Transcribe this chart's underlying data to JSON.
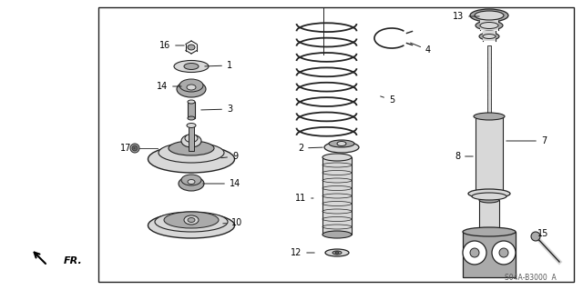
{
  "bg_color": "#ffffff",
  "border_color": "#000000",
  "line_color": "#222222",
  "fig_width": 6.4,
  "fig_height": 3.19,
  "dpi": 100,
  "watermark": "S04A-B3000  A",
  "fr_label": "FR."
}
